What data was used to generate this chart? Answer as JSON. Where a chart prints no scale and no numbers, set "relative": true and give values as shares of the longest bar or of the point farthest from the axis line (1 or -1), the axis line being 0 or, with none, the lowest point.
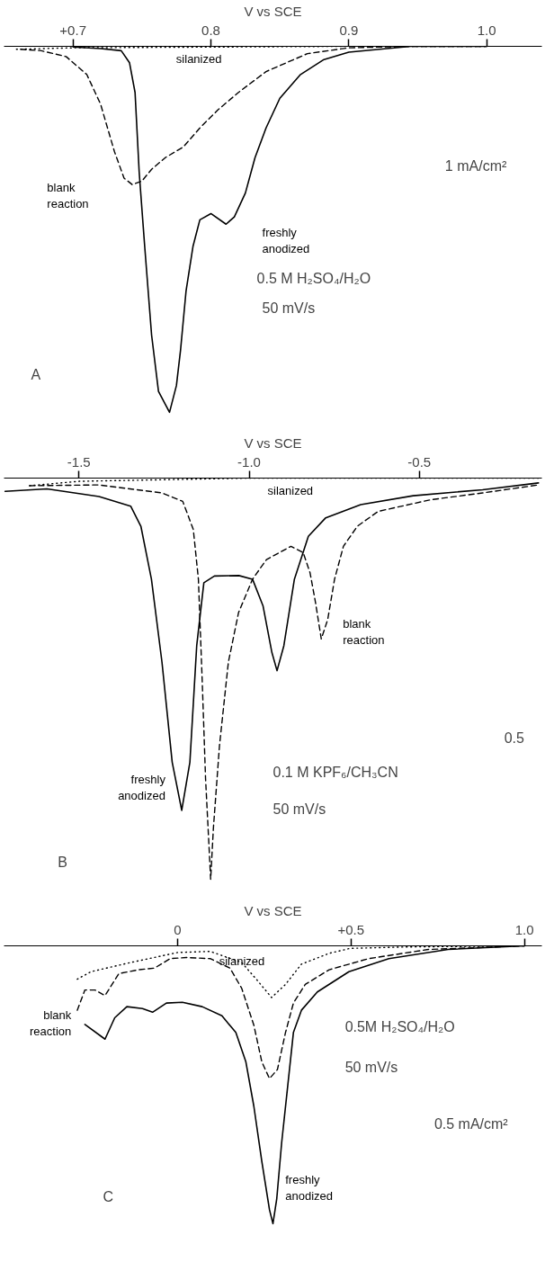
{
  "chart_data": [
    {
      "type": "line",
      "relative": true,
      "xlabel": "V vs SCE",
      "xlim": [
        0.65,
        1.04
      ],
      "xticks": [
        {
          "value": 0.7,
          "label": "+0.7"
        },
        0.8,
        0.9,
        {
          "value": 1.0,
          "label": "1.0"
        }
      ],
      "grid": false,
      "legend": false,
      "tick_labels": "x",
      "annotations": [
        "A",
        "0.5 M H₂SO₄/H₂O",
        "50 mV/s",
        "1 mA/cm²"
      ],
      "series": [
        {
          "name": "silanized",
          "color": "#000000",
          "line_style": "dotted",
          "x": [
            0.659,
            0.7,
            0.8,
            0.9,
            1.0
          ],
          "values": [
            -0.008,
            -0.004,
            -0.002,
            0,
            0
          ]
        },
        {
          "name": "blank reaction",
          "color": "#000000",
          "line_style": "dashed",
          "x": [
            0.662,
            0.677,
            0.695,
            0.71,
            0.72,
            0.73,
            0.737,
            0.743,
            0.75,
            0.757,
            0.767,
            0.78,
            0.792,
            0.805,
            0.82,
            0.84,
            0.87,
            0.9,
            0.945,
            1.0
          ],
          "values": [
            -0.008,
            -0.012,
            -0.028,
            -0.077,
            -0.158,
            -0.287,
            -0.36,
            -0.378,
            -0.368,
            -0.336,
            -0.304,
            -0.275,
            -0.223,
            -0.174,
            -0.126,
            -0.069,
            -0.02,
            -0.004,
            0,
            0
          ]
        },
        {
          "name": "freshly anodized",
          "color": "#000000",
          "line_style": "solid",
          "x": [
            0.7,
            0.72,
            0.735,
            0.741,
            0.745,
            0.748,
            0.752,
            0.757,
            0.762,
            0.77,
            0.775,
            0.778,
            0.782,
            0.787,
            0.792,
            0.8,
            0.811,
            0.817,
            0.825,
            0.832,
            0.84,
            0.85,
            0.865,
            0.882,
            0.9,
            0.945,
            1.0
          ],
          "values": [
            -0.002,
            -0.006,
            -0.012,
            -0.045,
            -0.126,
            -0.344,
            -0.547,
            -0.789,
            -0.943,
            -1.0,
            -0.927,
            -0.83,
            -0.668,
            -0.547,
            -0.474,
            -0.457,
            -0.486,
            -0.466,
            -0.401,
            -0.304,
            -0.223,
            -0.142,
            -0.077,
            -0.036,
            -0.016,
            0,
            0
          ]
        }
      ]
    },
    {
      "type": "line",
      "relative": true,
      "xlabel": "V vs SCE",
      "xlim": [
        -1.72,
        -0.14
      ],
      "xticks": [
        -1.5,
        {
          "value": -1.0,
          "label": "-1.0"
        },
        -0.5
      ],
      "grid": false,
      "legend": false,
      "tick_labels": "x",
      "annotations": [
        "B",
        "0.1 M KPF₆/CH₃CN",
        "50 mV/s",
        "0.5"
      ],
      "series": [
        {
          "name": "silanized",
          "color": "#000000",
          "line_style": "dotted",
          "x": [
            -1.645,
            -1.5,
            -1.0,
            -0.5,
            -0.15
          ],
          "values": [
            -0.019,
            -0.008,
            0,
            0,
            0
          ]
        },
        {
          "name": "blank reaction",
          "color": "#000000",
          "line_style": "dashed",
          "x": [
            -1.645,
            -1.441,
            -1.256,
            -1.195,
            -1.164,
            -1.149,
            -1.138,
            -1.128,
            -1.118,
            -1.113,
            -1.105,
            -1.087,
            -1.061,
            -1.031,
            -0.99,
            -0.949,
            -0.877,
            -0.841,
            -0.821,
            -0.805,
            -0.788,
            -0.769,
            -0.749,
            -0.723,
            -0.682,
            -0.621,
            -0.467,
            -0.314,
            -0.15
          ],
          "values": [
            -0.019,
            -0.017,
            -0.037,
            -0.058,
            -0.128,
            -0.252,
            -0.501,
            -0.749,
            -0.915,
            -1.0,
            -0.873,
            -0.666,
            -0.459,
            -0.335,
            -0.252,
            -0.203,
            -0.17,
            -0.186,
            -0.236,
            -0.31,
            -0.401,
            -0.352,
            -0.252,
            -0.17,
            -0.12,
            -0.083,
            -0.054,
            -0.037,
            -0.017
          ]
        },
        {
          "name": "freshly anodized",
          "color": "#000000",
          "line_style": "solid",
          "x": [
            -1.717,
            -1.594,
            -1.441,
            -1.348,
            -1.318,
            -1.287,
            -1.256,
            -1.226,
            -1.198,
            -1.174,
            -1.154,
            -1.133,
            -1.102,
            -1.03,
            -0.99,
            -0.959,
            -0.933,
            -0.918,
            -0.898,
            -0.867,
            -0.826,
            -0.775,
            -0.672,
            -0.518,
            -0.314,
            -0.15
          ],
          "values": [
            -0.033,
            -0.027,
            -0.046,
            -0.07,
            -0.12,
            -0.252,
            -0.459,
            -0.708,
            -0.828,
            -0.708,
            -0.418,
            -0.261,
            -0.244,
            -0.243,
            -0.252,
            -0.319,
            -0.435,
            -0.48,
            -0.418,
            -0.252,
            -0.145,
            -0.099,
            -0.066,
            -0.044,
            -0.029,
            -0.012
          ]
        }
      ]
    },
    {
      "type": "line",
      "relative": true,
      "xlabel": "V vs SCE",
      "xlim": [
        -0.5,
        1.05
      ],
      "xticks": [
        0,
        {
          "value": 0.5,
          "label": "+0.5"
        },
        {
          "value": 1.0,
          "label": "1.0"
        }
      ],
      "grid": false,
      "legend": false,
      "tick_labels": "x",
      "annotations": [
        "C",
        "0.5M H₂SO₄/H₂O",
        "50 mV/s",
        "0.5 mA/cm²"
      ],
      "series": [
        {
          "name": "silanized",
          "color": "#000000",
          "line_style": "dotted",
          "x": [
            -0.289,
            -0.249,
            -0.135,
            0,
            0.094,
            0.185,
            0.231,
            0.271,
            0.311,
            0.357,
            0.437,
            0.498,
            0.666,
            1.0
          ],
          "values": [
            -0.12,
            -0.093,
            -0.06,
            -0.024,
            -0.02,
            -0.06,
            -0.126,
            -0.186,
            -0.139,
            -0.066,
            -0.027,
            -0.009,
            -0.004,
            0
          ]
        },
        {
          "name": "blank reaction",
          "color": "#000000",
          "line_style": "dashed",
          "x": [
            -0.289,
            -0.267,
            -0.238,
            -0.209,
            -0.169,
            -0.112,
            -0.066,
            -0.021,
            0.025,
            0.094,
            0.151,
            0.185,
            0.22,
            0.243,
            0.265,
            0.288,
            0.311,
            0.334,
            0.368,
            0.437,
            0.551,
            0.723,
            1.0
          ],
          "values": [
            -0.232,
            -0.159,
            -0.159,
            -0.179,
            -0.1,
            -0.086,
            -0.08,
            -0.046,
            -0.042,
            -0.046,
            -0.08,
            -0.153,
            -0.286,
            -0.418,
            -0.478,
            -0.445,
            -0.313,
            -0.206,
            -0.139,
            -0.086,
            -0.046,
            -0.013,
            0
          ]
        },
        {
          "name": "freshly anodized",
          "color": "#000000",
          "line_style": "solid",
          "x": [
            -0.267,
            -0.209,
            -0.181,
            -0.146,
            -0.101,
            -0.072,
            -0.032,
            0.014,
            0.071,
            0.128,
            0.168,
            0.197,
            0.22,
            0.243,
            0.265,
            0.275,
            0.286,
            0.3,
            0.317,
            0.334,
            0.357,
            0.403,
            0.494,
            0.609,
            0.78,
            1.0
          ],
          "values": [
            -0.283,
            -0.336,
            -0.259,
            -0.219,
            -0.226,
            -0.239,
            -0.206,
            -0.203,
            -0.219,
            -0.252,
            -0.312,
            -0.418,
            -0.578,
            -0.777,
            -0.95,
            -1.0,
            -0.91,
            -0.71,
            -0.511,
            -0.312,
            -0.232,
            -0.166,
            -0.093,
            -0.046,
            -0.013,
            0
          ]
        }
      ]
    }
  ]
}
